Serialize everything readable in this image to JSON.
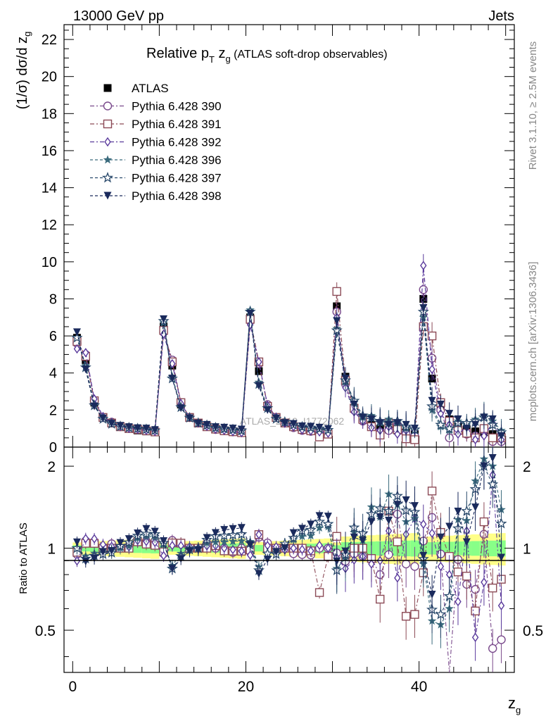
{
  "header": {
    "left": "13000 GeV pp",
    "right": "Jets"
  },
  "side_labels": {
    "rivet": "Rivet 3.1.10, ≥ 2.5M events",
    "mcplots": "mcplots.cern.ch [arXiv:1306.3436]"
  },
  "watermark": "ATLAS_2019_I1772062",
  "chart_data": {
    "type": "line",
    "title": "Relative pT zg (ATLAS soft-drop observables)",
    "xlabel": "zg",
    "ylabel": "(1/σ) dσ/d zg",
    "ratio_ylabel": "Ratio to ATLAS",
    "xlim": [
      -1,
      51
    ],
    "ylim": [
      0,
      22.8
    ],
    "ratio_ylim": [
      0.35,
      2.35
    ],
    "x_ticks": [
      0,
      20,
      40
    ],
    "y_ticks": [
      0,
      2,
      4,
      6,
      8,
      10,
      12,
      14,
      16,
      18,
      20,
      22
    ],
    "ratio_y_ticks": [
      0.5,
      1,
      2
    ],
    "legend_position": "top-left",
    "x": [
      0.5,
      1.5,
      2.5,
      3.5,
      4.5,
      5.5,
      6.5,
      7.5,
      8.5,
      9.5,
      10.5,
      11.5,
      12.5,
      13.5,
      14.5,
      15.5,
      16.5,
      17.5,
      18.5,
      19.5,
      20.5,
      21.5,
      22.5,
      23.5,
      24.5,
      25.5,
      26.5,
      27.5,
      28.5,
      29.5,
      30.5,
      31.5,
      32.5,
      33.5,
      34.5,
      35.5,
      36.5,
      37.5,
      38.5,
      39.5,
      40.5,
      41.5,
      42.5,
      43.5,
      44.5,
      45.5,
      46.5,
      47.5,
      48.5,
      49.5
    ],
    "series": [
      {
        "name": "ATLAS",
        "color": "#000000",
        "marker": "filled-square",
        "dash": "none",
        "values": [
          5.9,
          4.7,
          2.4,
          1.6,
          1.3,
          1.1,
          1.0,
          0.9,
          0.85,
          0.8,
          6.5,
          4.4,
          2.3,
          1.6,
          1.3,
          1.1,
          0.95,
          0.9,
          0.85,
          0.8,
          7.0,
          4.1,
          2.2,
          1.6,
          1.3,
          1.1,
          0.95,
          0.9,
          0.8,
          0.75,
          7.6,
          3.8,
          2.1,
          1.5,
          1.2,
          1.0,
          0.95,
          0.9,
          0.8,
          0.7,
          8.0,
          3.7,
          2.1,
          1.5,
          1.1,
          0.95,
          0.85,
          0.8,
          0.7,
          0.65
        ]
      },
      {
        "name": "Pythia 6.428 390",
        "color": "#7a4a8c",
        "marker": "open-circle",
        "dash": "6,3,2,3",
        "values": [
          5.6,
          5.0,
          2.5,
          1.6,
          1.35,
          1.1,
          1.02,
          0.95,
          0.9,
          0.85,
          6.2,
          4.7,
          2.4,
          1.6,
          1.3,
          1.15,
          0.95,
          0.9,
          0.82,
          0.8,
          6.8,
          4.5,
          2.3,
          1.6,
          1.3,
          1.05,
          0.9,
          0.85,
          0.8,
          0.75,
          7.3,
          3.4,
          2.0,
          1.4,
          1.1,
          0.8,
          0.9,
          1.2,
          0.7,
          0.6,
          8.5,
          4.8,
          2.0,
          0.5,
          1.0,
          0.7,
          0.6,
          0.9,
          0.3,
          0.3
        ]
      },
      {
        "name": "Pythia 6.428 391",
        "color": "#8c4a56",
        "marker": "open-square",
        "dash": "6,3,2,3",
        "values": [
          5.7,
          4.9,
          2.5,
          1.6,
          1.3,
          1.1,
          1.0,
          0.95,
          0.88,
          0.82,
          6.3,
          4.6,
          2.4,
          1.6,
          1.3,
          1.1,
          0.97,
          0.88,
          0.83,
          0.78,
          6.9,
          4.6,
          2.2,
          1.6,
          1.3,
          1.1,
          0.95,
          0.88,
          0.55,
          0.7,
          8.4,
          3.6,
          2.1,
          1.5,
          1.1,
          0.65,
          1.3,
          0.95,
          0.45,
          0.4,
          6.5,
          6.0,
          2.4,
          1.4,
          0.9,
          0.75,
          0.5,
          1.0,
          0.5,
          0.5
        ]
      },
      {
        "name": "Pythia 6.428 392",
        "color": "#5a3a9c",
        "marker": "open-diamond",
        "dash": "6,3,2,3",
        "values": [
          5.3,
          5.1,
          2.6,
          1.65,
          1.32,
          1.12,
          1.01,
          0.96,
          0.9,
          0.84,
          6.1,
          4.5,
          2.35,
          1.62,
          1.3,
          1.12,
          0.97,
          0.9,
          0.84,
          0.78,
          6.6,
          4.6,
          2.25,
          1.62,
          1.28,
          1.1,
          0.94,
          0.88,
          0.82,
          0.75,
          7.0,
          3.2,
          1.9,
          1.4,
          1.05,
          0.9,
          1.1,
          0.7,
          0.9,
          0.9,
          9.8,
          4.2,
          1.8,
          1.2,
          0.7,
          1.1,
          0.4,
          0.6,
          1.3,
          0.4
        ]
      },
      {
        "name": "Pythia 6.428 396",
        "color": "#3a6a7c",
        "marker": "filled-star",
        "dash": "4,3",
        "values": [
          5.9,
          4.4,
          2.3,
          1.55,
          1.28,
          1.1,
          1.02,
          0.98,
          0.94,
          0.88,
          6.7,
          3.8,
          2.2,
          1.6,
          1.3,
          1.15,
          1.0,
          0.95,
          0.9,
          0.85,
          7.4,
          3.5,
          2.1,
          1.55,
          1.35,
          1.18,
          1.05,
          1.0,
          0.95,
          0.9,
          6.4,
          3.5,
          2.4,
          1.6,
          1.7,
          1.3,
          1.5,
          1.3,
          1.0,
          0.9,
          7.0,
          2.0,
          1.1,
          0.9,
          1.4,
          1.2,
          1.5,
          1.7,
          1.4,
          0.9
        ]
      },
      {
        "name": "Pythia 6.428 397",
        "color": "#2a4a6c",
        "marker": "open-star",
        "dash": "4,3",
        "values": [
          5.9,
          4.3,
          2.25,
          1.52,
          1.25,
          1.12,
          1.05,
          1.0,
          0.96,
          0.9,
          6.8,
          3.7,
          2.15,
          1.58,
          1.3,
          1.18,
          1.05,
          1.0,
          0.95,
          0.9,
          7.3,
          3.4,
          2.1,
          1.52,
          1.35,
          1.2,
          1.1,
          1.05,
          1.0,
          0.92,
          6.3,
          3.6,
          2.5,
          1.7,
          1.6,
          1.4,
          1.3,
          1.4,
          1.1,
          0.95,
          7.3,
          2.2,
          1.2,
          1.0,
          1.3,
          1.3,
          1.4,
          1.6,
          1.2,
          0.8
        ]
      },
      {
        "name": "Pythia 6.428 398",
        "color": "#1a2a5c",
        "marker": "filled-triangle-down",
        "dash": "4,3",
        "values": [
          6.2,
          4.2,
          2.2,
          1.55,
          1.27,
          1.15,
          1.08,
          1.02,
          1.0,
          0.92,
          6.9,
          3.7,
          2.1,
          1.56,
          1.28,
          1.2,
          1.08,
          1.05,
          1.0,
          0.95,
          7.2,
          3.3,
          2.0,
          1.55,
          1.3,
          1.25,
          1.12,
          1.1,
          1.05,
          0.98,
          6.8,
          3.7,
          2.3,
          1.6,
          1.5,
          1.3,
          1.2,
          1.3,
          1.2,
          1.0,
          7.5,
          2.5,
          2.3,
          1.8,
          1.5,
          1.0,
          1.2,
          1.6,
          1.5,
          0.6
        ]
      }
    ]
  }
}
